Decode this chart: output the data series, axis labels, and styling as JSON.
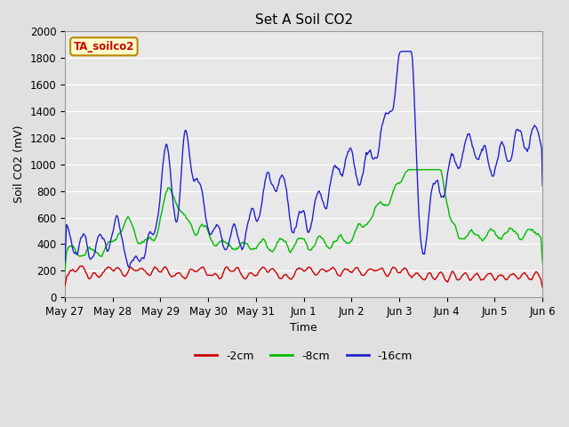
{
  "title": "Set A Soil CO2",
  "ylabel": "Soil CO2 (mV)",
  "xlabel": "Time",
  "legend_label": "TA_soilco2",
  "series_labels": [
    "-2cm",
    "-8cm",
    "-16cm"
  ],
  "series_colors": [
    "#cc0000",
    "#00bb00",
    "#2222cc"
  ],
  "ylim": [
    0,
    2000
  ],
  "yticks": [
    0,
    200,
    400,
    600,
    800,
    1000,
    1200,
    1400,
    1600,
    1800,
    2000
  ],
  "xtick_labels": [
    "May 27",
    "May 28",
    "May 29",
    "May 30",
    "May 31",
    "Jun 1",
    "Jun 2",
    "Jun 3",
    "Jun 4",
    "Jun 5",
    "Jun 6"
  ],
  "bg_color": "#e8e8e8",
  "grid_color": "#ffffff",
  "fig_color": "#e0e0e0",
  "legend_box_color": "#ffffcc",
  "legend_box_edge": "#bb8800"
}
